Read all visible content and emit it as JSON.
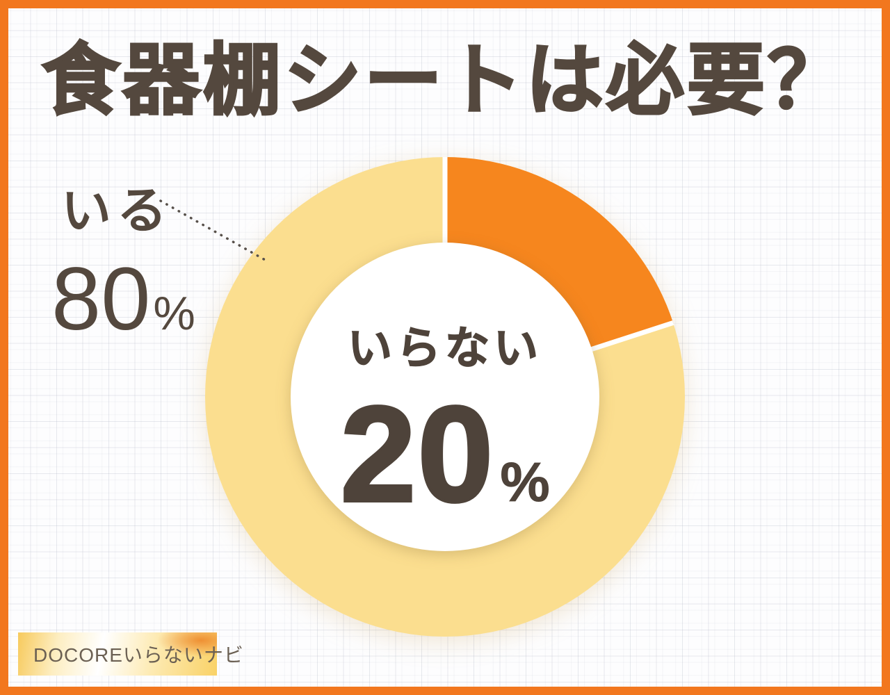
{
  "page": {
    "title": "食器棚シートは必要？",
    "brand_badge": "DOCOREいらないナビ"
  },
  "colors": {
    "frame_orange": "#F2771E",
    "slice_orange": "#F6861E",
    "slice_yellow": "#FBDE8F",
    "separator_white": "#FFFFFF",
    "text_dark": "#54483E",
    "badge_text": "#6B6053"
  },
  "chart_data": {
    "type": "pie",
    "subtype": "donut",
    "title": "食器棚シートは必要？",
    "start_angle_deg": 0,
    "direction": "clockwise",
    "inner_radius_ratio": 0.64,
    "segments": [
      {
        "label": "いらない",
        "value": 20,
        "unit": "%",
        "color": "#F6861E",
        "label_position": "center"
      },
      {
        "label": "いる",
        "value": 80,
        "unit": "%",
        "color": "#FBDE8F",
        "label_position": "outside-left"
      }
    ]
  },
  "labels": {
    "outside": {
      "name": "いる",
      "value": "80",
      "unit": "%"
    },
    "center": {
      "name": "いらない",
      "value": "20",
      "unit": "%"
    }
  }
}
